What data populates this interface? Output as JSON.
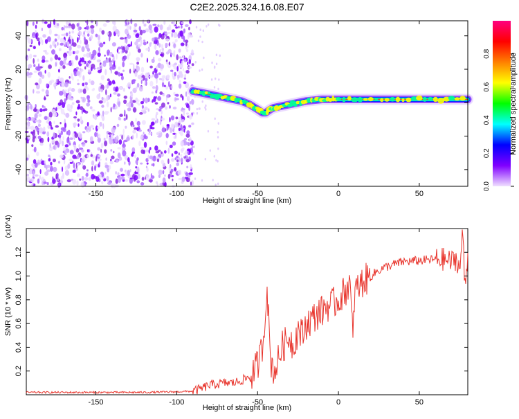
{
  "title": "C2E2.2025.324.16.08.E07",
  "chart_data": [
    {
      "type": "heatmap",
      "title": "C2E2.2025.324.16.08.E07",
      "xlabel": "Height of straight line (km)",
      "ylabel": "Frequency (Hz)",
      "xlim": [
        -193,
        80
      ],
      "ylim": [
        -50,
        49
      ],
      "x_ticks": [
        -150,
        -100,
        -50,
        0,
        50
      ],
      "x_tick_labels": [
        "-150",
        "-100",
        "-50",
        "0",
        "50"
      ],
      "y_ticks": [
        -40,
        -20,
        0,
        20,
        40
      ],
      "y_tick_labels": [
        "-40",
        "-20",
        "0",
        "20",
        "40"
      ],
      "noise_region_km": [
        -193,
        -90
      ],
      "ridge_km": [
        -90,
        -85,
        -80,
        -75,
        -70,
        -65,
        -60,
        -55,
        -50,
        -47,
        -45,
        -42,
        -40,
        -35,
        -30,
        -25,
        -20,
        -15,
        -10,
        -5,
        0,
        10,
        20,
        30,
        40,
        50,
        60,
        70,
        80
      ],
      "ridge_hz": [
        7,
        6,
        5,
        4,
        3,
        2,
        1,
        -1,
        -4,
        -6,
        -6,
        -4,
        -3,
        -2,
        -1,
        0,
        1,
        1.5,
        2,
        2,
        2,
        2,
        2,
        2,
        2,
        2,
        2,
        2,
        2
      ],
      "colorbar": {
        "label": "Normalized spectral amplitude",
        "range": [
          0,
          1
        ],
        "ticks": [
          0.0,
          0.2,
          0.4,
          0.6,
          0.8
        ],
        "tick_labels": [
          "0.0",
          "0.2",
          "0.4",
          "0.6",
          "0.8"
        ],
        "colors": [
          "#f0e0ff",
          "#8000ff",
          "#0000ff",
          "#00ffff",
          "#00ff00",
          "#ffff00",
          "#ff8000",
          "#ff0000",
          "#ff0080"
        ]
      }
    },
    {
      "type": "line",
      "xlabel": "Height of straight line (km)",
      "ylabel": "SNR (10 * v/v)",
      "y_multiplier": "(x10^4)",
      "xlim": [
        -193,
        80
      ],
      "ylim": [
        0,
        1.4
      ],
      "x_ticks": [
        -150,
        -100,
        -50,
        0,
        50
      ],
      "x_tick_labels": [
        "-150",
        "-100",
        "-50",
        "0",
        "50"
      ],
      "y_ticks": [
        0.2,
        0.4,
        0.6,
        0.8,
        1.0,
        1.2
      ],
      "y_tick_labels": [
        "0.2",
        "0.4",
        "0.6",
        "0.8",
        "1.0",
        "1.2"
      ],
      "color": "#e8342c",
      "series": [
        {
          "name": "SNR",
          "x": [
            -193,
            -180,
            -160,
            -140,
            -120,
            -100,
            -90,
            -85,
            -80,
            -75,
            -70,
            -65,
            -60,
            -55,
            -52,
            -50,
            -48,
            -46,
            -45,
            -44,
            -43,
            -42,
            -40,
            -38,
            -35,
            -32,
            -30,
            -28,
            -25,
            -22,
            -20,
            -18,
            -15,
            -12,
            -10,
            -8,
            -5,
            -2,
            0,
            3,
            5,
            7,
            8,
            9,
            10,
            12,
            15,
            20,
            25,
            30,
            35,
            40,
            50,
            60,
            65,
            70,
            73,
            75,
            77,
            78,
            80
          ],
          "y": [
            0.02,
            0.02,
            0.02,
            0.02,
            0.02,
            0.025,
            0.03,
            0.05,
            0.08,
            0.09,
            0.1,
            0.1,
            0.12,
            0.15,
            0.2,
            0.25,
            0.35,
            0.5,
            0.8,
            0.92,
            0.55,
            0.3,
            0.2,
            0.25,
            0.4,
            0.45,
            0.5,
            0.4,
            0.55,
            0.5,
            0.6,
            0.62,
            0.65,
            0.7,
            0.7,
            0.75,
            0.75,
            0.78,
            0.8,
            0.85,
            0.9,
            0.95,
            0.7,
            0.45,
            0.88,
            0.9,
            0.95,
            1.0,
            1.05,
            1.08,
            1.1,
            1.12,
            1.13,
            1.14,
            1.14,
            1.12,
            1.15,
            1.05,
            1.38,
            0.9,
            1.15
          ]
        }
      ]
    }
  ]
}
